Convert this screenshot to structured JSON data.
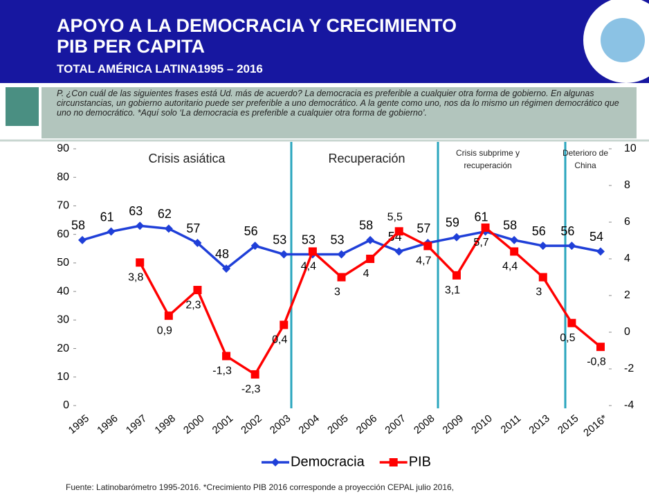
{
  "header": {
    "title": [
      "APOYO A LA DEMOCRACIA Y CRECIMIENTO",
      "PIB PER CAPITA"
    ],
    "subtitle": "TOTAL AMÉRICA LATINA1995 – 2016"
  },
  "question": "P. ¿Con cuál de las siguientes frases está Ud. más de acuerdo? La democracia es preferible a cualquier otra forma de gobierno. En algunas circunstancias, un gobierno autoritario puede ser preferible a uno democrático. A la gente como uno, nos da lo mismo un régimen democrático que uno no democrático. *Aquí solo ‘La democracia es preferible a cualquier otra forma de gobierno’.",
  "chart_data": {
    "type": "line",
    "categories": [
      "1995",
      "1996",
      "1997",
      "1998",
      "2000",
      "2001",
      "2002",
      "2003",
      "2004",
      "2005",
      "2006",
      "2007",
      "2008",
      "2009",
      "2010",
      "2011",
      "2013",
      "2015",
      "2016*"
    ],
    "series": [
      {
        "name": "Democracia",
        "color": "#1f3fd8",
        "values": [
          58,
          61,
          63,
          62,
          57,
          48,
          56,
          53,
          53,
          53,
          58,
          54,
          57,
          59,
          61,
          58,
          56,
          56,
          54
        ]
      },
      {
        "name": "PIB",
        "color": "#ff0000",
        "axis": "y2",
        "values": [
          null,
          null,
          3.8,
          0.9,
          2.3,
          -1.3,
          -2.3,
          0.4,
          4.4,
          3,
          4,
          5.5,
          4.7,
          3.1,
          5.7,
          4.4,
          3,
          0.5,
          -0.8
        ],
        "value_labels": [
          null,
          null,
          "3,8",
          "0,9",
          "2,3",
          "-1,3",
          "-2,3",
          "0,4",
          "4,4",
          "3",
          "4",
          "5,5",
          "4,7",
          "3,1",
          "5,7",
          "4,4",
          "3",
          "0,5",
          "-0,8"
        ]
      }
    ],
    "ylim": [
      0,
      90
    ],
    "yticks": [
      0,
      10,
      20,
      30,
      40,
      50,
      60,
      70,
      80,
      90
    ],
    "y2lim": [
      -4,
      10
    ],
    "y2ticks": [
      -4,
      -2,
      0,
      2,
      4,
      6,
      8,
      10
    ],
    "annotations": [
      "Crisis asiática",
      "Recuperación",
      "Crisis subprime y recuperación",
      "Deterioro de China"
    ],
    "legend": "bottom"
  },
  "footer": "Fuente: Latinobarómetro 1995-2016. *Crecimiento PIB 2016 corresponde a proyección CEPAL julio 2016,"
}
